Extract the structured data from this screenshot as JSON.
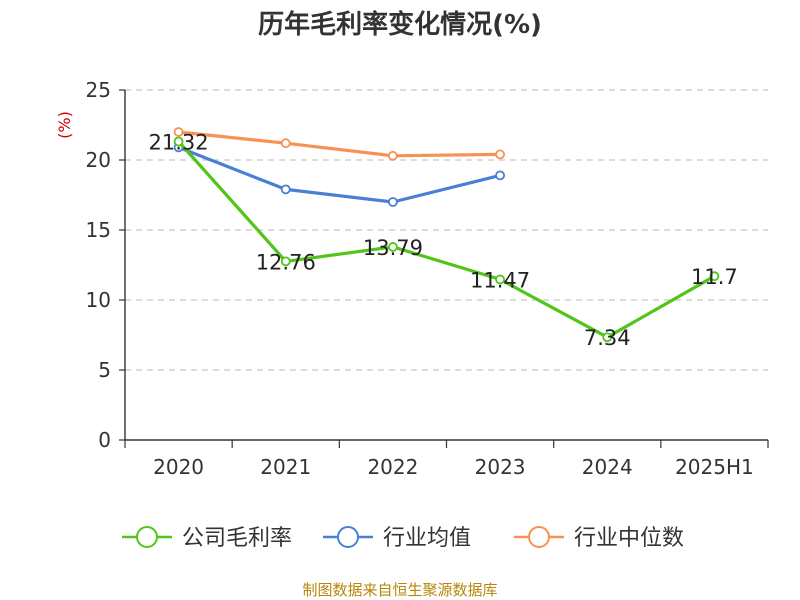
{
  "chart_data": {
    "type": "line",
    "title": "历年毛利率变化情况(%)",
    "ylabel": "(%)",
    "ylim": [
      0,
      25
    ],
    "yticks": [
      0,
      5,
      10,
      15,
      20,
      25
    ],
    "categories": [
      "2020",
      "2021",
      "2022",
      "2023",
      "2024",
      "2025H1"
    ],
    "grid": true,
    "legend_position": "bottom",
    "series": [
      {
        "name": "公司毛利率",
        "color": "#52c41a",
        "values": [
          21.32,
          12.76,
          13.79,
          11.47,
          7.34,
          11.7
        ],
        "data_labels": [
          "21.32",
          "12.76",
          "13.79",
          "11.47",
          "7.34",
          "11.7"
        ]
      },
      {
        "name": "行业均值",
        "color": "#4a7fd6",
        "values": [
          20.9,
          17.9,
          17.0,
          18.9,
          null,
          null
        ]
      },
      {
        "name": "行业中位数",
        "color": "#f79256",
        "values": [
          22.0,
          21.2,
          20.3,
          20.4,
          null,
          null
        ]
      }
    ]
  },
  "source": "制图数据来自恒生聚源数据库"
}
